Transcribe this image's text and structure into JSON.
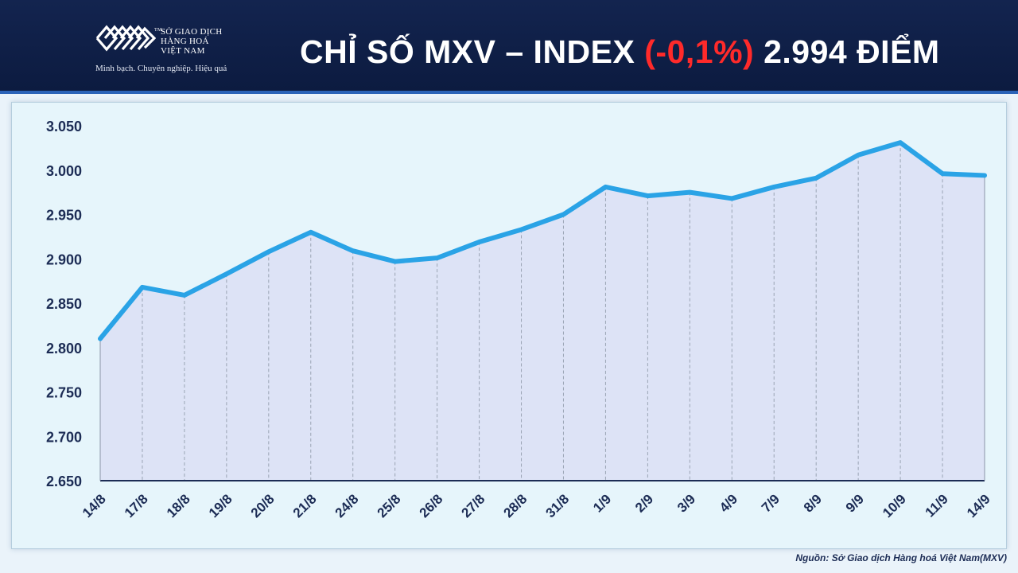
{
  "header": {
    "brand_line1": "SỞ GIAO DỊCH",
    "brand_line2": "HÀNG HOÁ",
    "brand_line3": "VIỆT NAM",
    "trademark": "TM",
    "slogan": "Minh bạch. Chuyên nghiệp. Hiệu quả",
    "title_part1": "CHỈ SỐ MXV – INDEX ",
    "title_change": "(-0,1%)",
    "title_part2": " 2.994 ĐIỂM",
    "colors": {
      "background": "#13244f",
      "change": "#ff2a2a",
      "text": "#ffffff"
    }
  },
  "chart_data": {
    "type": "area",
    "title": "CHỈ SỐ MXV – INDEX (-0,1%) 2.994 ĐIỂM",
    "categories": [
      "14/8",
      "17/8",
      "18/8",
      "19/8",
      "20/8",
      "21/8",
      "24/8",
      "25/8",
      "26/8",
      "27/8",
      "28/8",
      "31/8",
      "1/9",
      "2/9",
      "3/9",
      "4/9",
      "7/9",
      "8/9",
      "9/9",
      "10/9",
      "11/9",
      "14/9"
    ],
    "series": [
      {
        "values": [
          2810,
          2868,
          2859,
          2883,
          2908,
          2930,
          2909,
          2897,
          2901,
          2919,
          2933,
          2950,
          2981,
          2971,
          2975,
          2968,
          2981,
          2991,
          3017,
          3031,
          2996,
          2994
        ]
      }
    ],
    "ylim": [
      2650,
      3050
    ],
    "yticks": [
      2650,
      2700,
      2750,
      2800,
      2850,
      2900,
      2950,
      3000,
      3050
    ],
    "ytick_labels": [
      "2.650",
      "2.700",
      "2.750",
      "2.800",
      "2.850",
      "2.900",
      "2.950",
      "3.000",
      "3.050"
    ],
    "xlabel": "",
    "ylabel": "",
    "grid": "vertical dashed",
    "legend": "none",
    "colors": {
      "line": "#2aa3e6",
      "fill": "#dde3f6",
      "grid": "#9aa4b4",
      "axis": "#1c2c55"
    }
  },
  "footer": {
    "source": "Nguồn: Sở Giao dịch Hàng hoá Việt Nam(MXV)"
  }
}
